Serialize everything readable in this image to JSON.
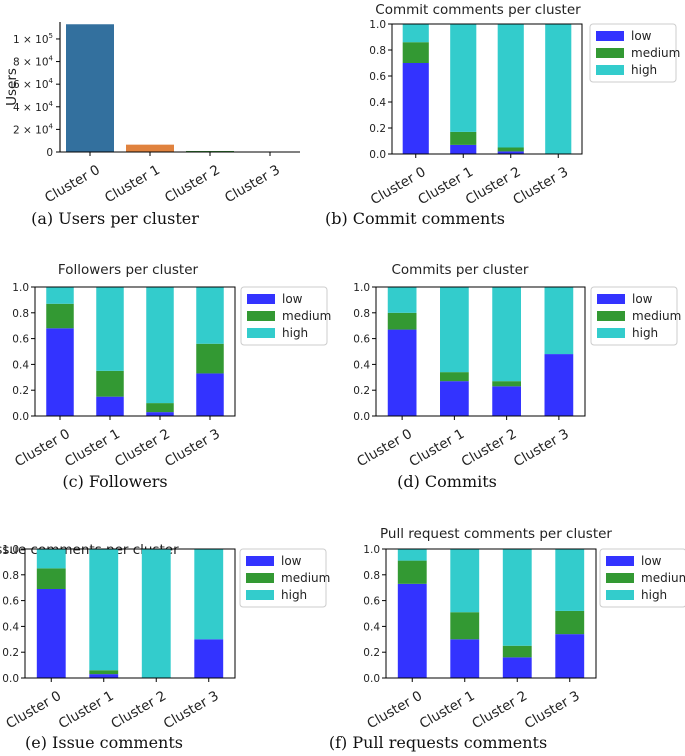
{
  "chart_data": [
    {
      "type": "bar",
      "title": "",
      "ylabel": "Users",
      "xlabel": "",
      "categories": [
        "Cluster 0",
        "Cluster 1",
        "Cluster 2",
        "Cluster 3"
      ],
      "values": [
        113000,
        6500,
        900,
        250
      ],
      "bar_colors": [
        "#33709e",
        "#e0823e",
        "#3b923b",
        "#c03d3e"
      ],
      "ylim": [
        0,
        115000
      ],
      "yticks": [
        0,
        20000,
        40000,
        60000,
        80000,
        100000
      ],
      "ytick_labels": [
        {
          "label": "0",
          "mant": "",
          "exp": ""
        },
        {
          "label": "",
          "mant": "2 × 10",
          "exp": "4"
        },
        {
          "label": "",
          "mant": "4 × 10",
          "exp": "4"
        },
        {
          "label": "",
          "mant": "6 × 10",
          "exp": "4"
        },
        {
          "label": "",
          "mant": "8 × 10",
          "exp": "4"
        },
        {
          "label": "",
          "mant": "1 × 10",
          "exp": "5"
        }
      ],
      "caption": "(a) Users per cluster"
    },
    {
      "type": "bar",
      "stacked": true,
      "title": "Commit comments per cluster",
      "categories": [
        "Cluster 0",
        "Cluster 1",
        "Cluster 2",
        "Cluster 3"
      ],
      "series": [
        {
          "name": "low",
          "values": [
            0.7,
            0.07,
            0.02,
            0.0
          ]
        },
        {
          "name": "medium",
          "values": [
            0.16,
            0.1,
            0.03,
            0.0
          ]
        },
        {
          "name": "high",
          "values": [
            0.14,
            0.83,
            0.95,
            1.0
          ]
        }
      ],
      "ylim": [
        0,
        1.0
      ],
      "yticks": [
        "0.0",
        "0.2",
        "0.4",
        "0.6",
        "0.8",
        "1.0"
      ],
      "legend": "right",
      "caption": "(b) Commit comments"
    },
    {
      "type": "bar",
      "stacked": true,
      "title": "Followers per cluster",
      "categories": [
        "Cluster 0",
        "Cluster 1",
        "Cluster 2",
        "Cluster 3"
      ],
      "series": [
        {
          "name": "low",
          "values": [
            0.68,
            0.15,
            0.03,
            0.33
          ]
        },
        {
          "name": "medium",
          "values": [
            0.19,
            0.2,
            0.07,
            0.23
          ]
        },
        {
          "name": "high",
          "values": [
            0.13,
            0.65,
            0.9,
            0.44
          ]
        }
      ],
      "ylim": [
        0,
        1.0
      ],
      "yticks": [
        "0.0",
        "0.2",
        "0.4",
        "0.6",
        "0.8",
        "1.0"
      ],
      "legend": "right",
      "caption": "(c) Followers"
    },
    {
      "type": "bar",
      "stacked": true,
      "title": "Commits per cluster",
      "categories": [
        "Cluster 0",
        "Cluster 1",
        "Cluster 2",
        "Cluster 3"
      ],
      "series": [
        {
          "name": "low",
          "values": [
            0.67,
            0.27,
            0.23,
            0.48
          ]
        },
        {
          "name": "medium",
          "values": [
            0.13,
            0.07,
            0.04,
            0.0
          ]
        },
        {
          "name": "high",
          "values": [
            0.2,
            0.66,
            0.73,
            0.52
          ]
        }
      ],
      "ylim": [
        0,
        1.0
      ],
      "yticks": [
        "0.0",
        "0.2",
        "0.4",
        "0.6",
        "0.8",
        "1.0"
      ],
      "legend": "right",
      "caption": "(d) Commits"
    },
    {
      "type": "bar",
      "stacked": true,
      "title": "Issue comments per cluster",
      "categories": [
        "Cluster 0",
        "Cluster 1",
        "Cluster 2",
        "Cluster 3"
      ],
      "series": [
        {
          "name": "low",
          "values": [
            0.69,
            0.03,
            0.0,
            0.3
          ]
        },
        {
          "name": "medium",
          "values": [
            0.16,
            0.03,
            0.0,
            0.0
          ]
        },
        {
          "name": "high",
          "values": [
            0.15,
            0.94,
            1.0,
            0.7
          ]
        }
      ],
      "ylim": [
        0,
        1.0
      ],
      "yticks": [
        "0.0",
        "0.2",
        "0.4",
        "0.6",
        "0.8",
        "1.0"
      ],
      "legend": "right",
      "caption": "(e) Issue comments"
    },
    {
      "type": "bar",
      "stacked": true,
      "title": "Pull request comments per cluster",
      "categories": [
        "Cluster 0",
        "Cluster 1",
        "Cluster 2",
        "Cluster 3"
      ],
      "series": [
        {
          "name": "low",
          "values": [
            0.73,
            0.3,
            0.16,
            0.34
          ]
        },
        {
          "name": "medium",
          "values": [
            0.18,
            0.21,
            0.09,
            0.18
          ]
        },
        {
          "name": "high",
          "values": [
            0.09,
            0.49,
            0.75,
            0.48
          ]
        }
      ],
      "ylim": [
        0,
        1.0
      ],
      "yticks": [
        "0.0",
        "0.2",
        "0.4",
        "0.6",
        "0.8",
        "1.0"
      ],
      "legend": "right",
      "caption": "(f) Pull requests comments"
    }
  ],
  "colors": {
    "low": "#3333ff",
    "medium": "#339933",
    "high": "#33cccc",
    "axis": "#000000"
  }
}
